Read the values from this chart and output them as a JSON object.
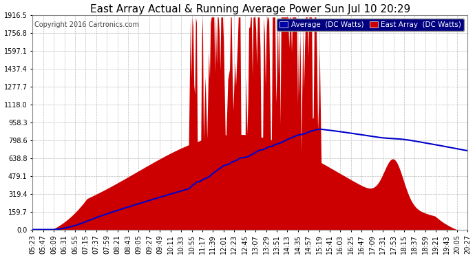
{
  "title": "East Array Actual & Running Average Power Sun Jul 10 20:29",
  "copyright": "Copyright 2016 Cartronics.com",
  "legend_avg": "Average  (DC Watts)",
  "legend_east": "East Array  (DC Watts)",
  "bg_color": "#ffffff",
  "plot_bg_color": "#ffffff",
  "grid_color": "#aaaaaa",
  "fill_color": "#cc0000",
  "avg_line_color": "#0000cc",
  "title_color": "#000000",
  "ymin": 0.0,
  "ymax": 1916.5,
  "ytick_values": [
    0.0,
    159.7,
    319.4,
    479.1,
    638.8,
    798.6,
    958.3,
    1118.0,
    1277.7,
    1437.4,
    1597.1,
    1756.8,
    1916.5
  ],
  "xtick_labels": [
    "05:23",
    "05:47",
    "06:09",
    "06:31",
    "06:55",
    "07:15",
    "07:37",
    "07:59",
    "08:21",
    "08:43",
    "09:05",
    "09:27",
    "09:49",
    "10:11",
    "10:33",
    "10:55",
    "11:17",
    "11:39",
    "12:01",
    "12:23",
    "12:45",
    "13:07",
    "13:29",
    "13:51",
    "14:13",
    "14:35",
    "14:57",
    "15:19",
    "15:41",
    "16:03",
    "16:25",
    "16:47",
    "17:09",
    "17:31",
    "17:53",
    "18:15",
    "18:37",
    "18:59",
    "19:21",
    "19:43",
    "20:05",
    "20:27"
  ],
  "title_fontsize": 11,
  "copyright_fontsize": 7,
  "tick_fontsize": 7,
  "legend_fontsize": 7.5
}
